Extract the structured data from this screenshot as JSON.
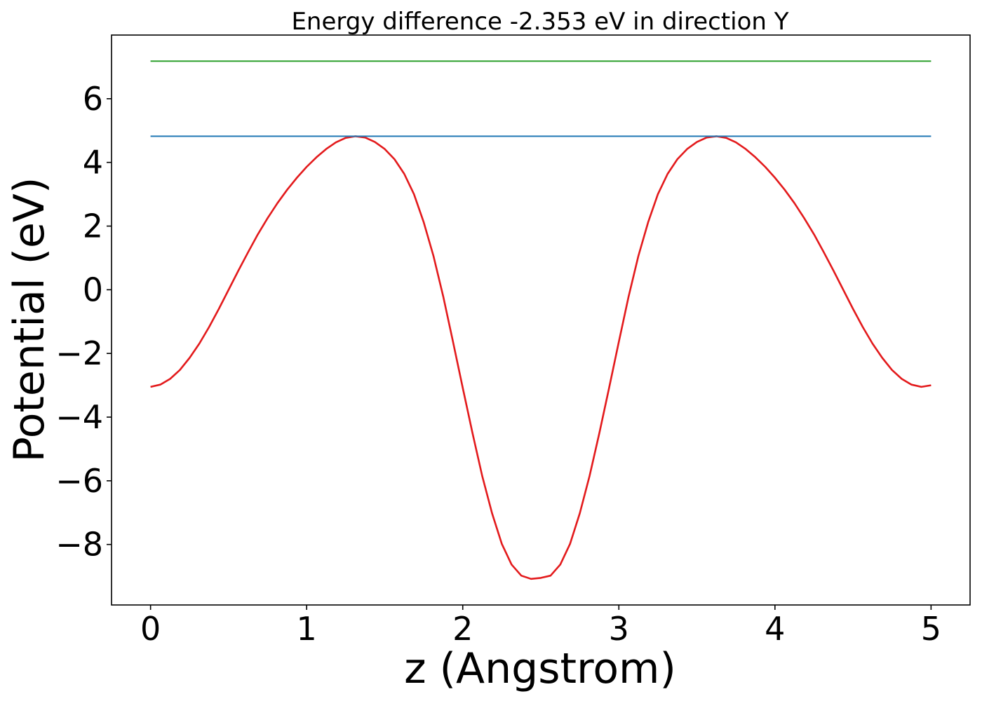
{
  "chart_data": {
    "type": "line",
    "title": "Energy difference -2.353 eV in direction Y",
    "xlabel": "z (Angstrom)",
    "ylabel": "Potential (eV)",
    "xlim": [
      -0.25,
      5.25
    ],
    "ylim": [
      -9.9,
      8.0
    ],
    "xticks": [
      0,
      1,
      2,
      3,
      4,
      5
    ],
    "xtick_labels": [
      "0",
      "1",
      "2",
      "3",
      "4",
      "5"
    ],
    "yticks": [
      -8,
      -6,
      -4,
      -2,
      0,
      2,
      4,
      6
    ],
    "ytick_labels": [
      "−8",
      "−6",
      "−4",
      "−2",
      "0",
      "2",
      "4",
      "6"
    ],
    "grid": false,
    "legend": "none",
    "series": [
      {
        "color": "#e31a1c",
        "x": [
          0.0,
          0.0625,
          0.125,
          0.1875,
          0.25,
          0.3125,
          0.375,
          0.4375,
          0.5,
          0.5625,
          0.625,
          0.6875,
          0.75,
          0.8125,
          0.875,
          0.9375,
          1.0,
          1.0625,
          1.125,
          1.1875,
          1.25,
          1.3125,
          1.375,
          1.4375,
          1.5,
          1.5625,
          1.625,
          1.6875,
          1.75,
          1.8125,
          1.875,
          1.9375,
          2.0,
          2.0625,
          2.125,
          2.1875,
          2.25,
          2.3125,
          2.375,
          2.4375,
          2.5,
          2.5625,
          2.625,
          2.6875,
          2.75,
          2.8125,
          2.875,
          2.9375,
          3.0,
          3.0625,
          3.125,
          3.1875,
          3.25,
          3.3125,
          3.375,
          3.4375,
          3.5,
          3.5625,
          3.625,
          3.6875,
          3.75,
          3.8125,
          3.875,
          3.9375,
          4.0,
          4.0625,
          4.125,
          4.1875,
          4.25,
          4.3125,
          4.375,
          4.4375,
          4.5,
          4.5625,
          4.625,
          4.6875,
          4.75,
          4.8125,
          4.875,
          4.9375,
          5.0
        ],
        "y": [
          -3.05,
          -2.98,
          -2.8,
          -2.52,
          -2.14,
          -1.69,
          -1.17,
          -0.6,
          0.0,
          0.6,
          1.18,
          1.74,
          2.25,
          2.72,
          3.14,
          3.52,
          3.86,
          4.16,
          4.42,
          4.63,
          4.77,
          4.82,
          4.78,
          4.64,
          4.42,
          4.1,
          3.64,
          3.0,
          2.12,
          1.06,
          -0.21,
          -1.63,
          -3.08,
          -4.5,
          -5.85,
          -7.02,
          -7.98,
          -8.63,
          -8.98,
          -9.08,
          -9.05,
          -8.98,
          -8.63,
          -7.98,
          -7.02,
          -5.85,
          -4.5,
          -3.08,
          -1.63,
          -0.21,
          1.06,
          2.12,
          3.0,
          3.64,
          4.1,
          4.42,
          4.64,
          4.78,
          4.82,
          4.77,
          4.63,
          4.42,
          4.16,
          3.86,
          3.52,
          3.14,
          2.72,
          2.25,
          1.74,
          1.18,
          0.6,
          0.0,
          -0.6,
          -1.17,
          -1.69,
          -2.14,
          -2.52,
          -2.8,
          -2.98,
          -3.05,
          -3.0
        ]
      },
      {
        "color": "#1f77b4",
        "x": [
          0,
          5
        ],
        "y": [
          4.82,
          4.82
        ]
      },
      {
        "color": "#2ca02c",
        "x": [
          0,
          5
        ],
        "y": [
          7.18,
          7.18
        ]
      }
    ]
  }
}
